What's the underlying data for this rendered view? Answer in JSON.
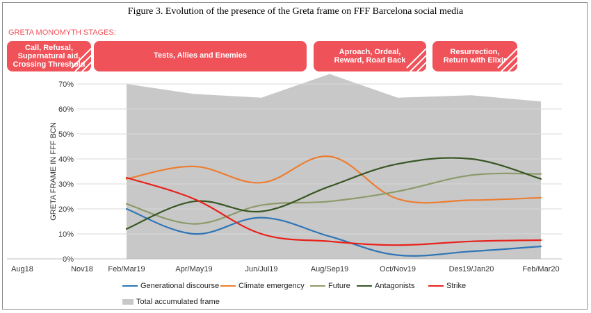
{
  "figure_title": "Figure 3. Evolution of the presence of the Greta frame on FFF Barcelona social media",
  "stages_label": "GRETA MONOMYTH STAGES:",
  "stages": [
    {
      "label": "Call, Refusal,\nSupernatural aid,\nCrossing Threshold",
      "striped": true
    },
    {
      "label": "Tests, Allies and Enemies",
      "striped": false
    },
    {
      "label": "Aproach, Ordeal,\nReward, Road Back",
      "striped": true
    },
    {
      "label": "Resurrection,\nReturn with Elixir",
      "striped": true
    }
  ],
  "colors": {
    "stage": "#f0525a",
    "area": "#c8c8c8",
    "grid": "#d9d9d9"
  },
  "chart_data": {
    "type": "line",
    "ylabel": "GRETA FRAME IN FFF BCN",
    "xlabel": "",
    "categories": [
      "Aug18",
      "Nov18",
      "Feb/Mar19",
      "Apr/May19",
      "Jun/Jul19",
      "Aug/Sep19",
      "Oct/Nov19",
      "Des19/Jan20",
      "Feb/Mar20"
    ],
    "ylim": [
      0,
      70
    ],
    "yticks": [
      "0%",
      "10%",
      "20%",
      "30%",
      "40%",
      "50%",
      "60%",
      "70%"
    ],
    "grid": true,
    "legend_position": "bottom",
    "area": {
      "name": "Total accumulated frame",
      "color": "#c8c8c8",
      "values": [
        null,
        null,
        70,
        66,
        64.5,
        74,
        64.5,
        65.5,
        63
      ]
    },
    "series": [
      {
        "name": "Generational discourse",
        "color": "#2e75b6",
        "values": [
          null,
          null,
          20,
          10,
          16.5,
          9,
          1.5,
          3,
          5
        ]
      },
      {
        "name": "Climate emergency",
        "color": "#ed7d31",
        "values": [
          null,
          null,
          32,
          37,
          30.5,
          41,
          24,
          23.5,
          24.5
        ]
      },
      {
        "name": "Future",
        "color": "#8c9a6a",
        "values": [
          null,
          null,
          22,
          14,
          21.5,
          23,
          27,
          33.5,
          34
        ]
      },
      {
        "name": "Antagonists",
        "color": "#375623",
        "values": [
          null,
          null,
          12,
          23,
          19,
          29,
          38,
          40,
          32
        ]
      },
      {
        "name": "Strike",
        "color": "#e8211b",
        "values": [
          null,
          null,
          32.5,
          24,
          10,
          7,
          5.5,
          7,
          7.5
        ]
      }
    ]
  }
}
